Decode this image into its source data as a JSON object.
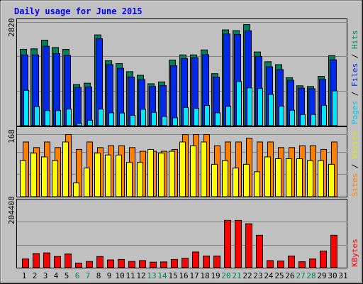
{
  "title": "Daily usage for June 2015",
  "colors": {
    "background": "#c0c0c0",
    "title": "#0000ff",
    "hits_bar": "#00805c",
    "files_bar": "#0028e8",
    "pages_bar": "#00e6ff",
    "sites_bar": "#ff8000",
    "visits_bar": "#ffff00",
    "kbytes_bar": "#ff0000",
    "weekday_label": "#000000",
    "weekend_label": "#00805c"
  },
  "chart_data": [
    {
      "type": "bar",
      "panel": "hits-files-pages",
      "max_label": "2820",
      "right_label": {
        "pages": "Pages",
        "files": "Files",
        "hits": "Hits",
        "sep": " / "
      },
      "ylim": [
        0,
        2820
      ],
      "categories": [
        "1",
        "2",
        "3",
        "4",
        "5",
        "6",
        "7",
        "8",
        "9",
        "10",
        "11",
        "12",
        "13",
        "14",
        "15",
        "16",
        "17",
        "18",
        "19",
        "20",
        "21",
        "22",
        "23",
        "24",
        "25",
        "26",
        "27",
        "28",
        "29",
        "30",
        "31"
      ],
      "series": [
        {
          "name": "Hits",
          "values": [
            2085,
            2100,
            2335,
            2135,
            2085,
            1130,
            1165,
            2480,
            1775,
            1700,
            1480,
            1380,
            1150,
            1200,
            1795,
            1935,
            1935,
            2070,
            1425,
            2615,
            2595,
            2760,
            2015,
            1750,
            1670,
            1315,
            1095,
            1075,
            1350,
            1915,
            0
          ]
        },
        {
          "name": "Files",
          "values": [
            1935,
            1935,
            2170,
            1970,
            1920,
            1050,
            1065,
            2375,
            1670,
            1570,
            1330,
            1265,
            1075,
            1100,
            1640,
            1835,
            1860,
            1940,
            1330,
            2505,
            2490,
            2590,
            1895,
            1610,
            1535,
            1245,
            1030,
            1015,
            1270,
            1800,
            0
          ]
        },
        {
          "name": "Pages",
          "values": [
            970,
            530,
            420,
            420,
            460,
            70,
            155,
            460,
            360,
            355,
            290,
            455,
            370,
            260,
            225,
            505,
            480,
            560,
            360,
            535,
            1210,
            1040,
            1020,
            860,
            540,
            430,
            310,
            315,
            560,
            955,
            0
          ]
        }
      ]
    },
    {
      "type": "bar",
      "panel": "sites-visits",
      "max_label": "168",
      "right_label": {
        "sites": "Sites",
        "visits": "Visits",
        "sep": " / "
      },
      "ylim": [
        0,
        168
      ],
      "categories": [
        "1",
        "2",
        "3",
        "4",
        "5",
        "6",
        "7",
        "8",
        "9",
        "10",
        "11",
        "12",
        "13",
        "14",
        "15",
        "16",
        "17",
        "18",
        "19",
        "20",
        "21",
        "22",
        "23",
        "24",
        "25",
        "26",
        "27",
        "28",
        "29",
        "30",
        "31"
      ],
      "series": [
        {
          "name": "Sites",
          "values": [
            148,
            133,
            148,
            133,
            168,
            128,
            148,
            133,
            138,
            138,
            133,
            123,
            123,
            123,
            128,
            168,
            168,
            168,
            138,
            148,
            148,
            158,
            148,
            148,
            133,
            133,
            138,
            138,
            128,
            148,
            0
          ]
        },
        {
          "name": "Visits",
          "values": [
            98,
            118,
            108,
            98,
            148,
            38,
            78,
            118,
            113,
            113,
            93,
            93,
            128,
            118,
            123,
            148,
            138,
            148,
            88,
            98,
            78,
            88,
            68,
            108,
            103,
            103,
            103,
            98,
            98,
            88,
            0
          ]
        }
      ]
    },
    {
      "type": "bar",
      "panel": "kbytes",
      "max_label": "204408",
      "right_label": {
        "kbytes": "KBytes"
      },
      "ylim": [
        0,
        204408
      ],
      "categories": [
        "1",
        "2",
        "3",
        "4",
        "5",
        "6",
        "7",
        "8",
        "9",
        "10",
        "11",
        "12",
        "13",
        "14",
        "15",
        "16",
        "17",
        "18",
        "19",
        "20",
        "21",
        "22",
        "23",
        "24",
        "25",
        "26",
        "27",
        "28",
        "29",
        "30",
        "31"
      ],
      "weekend_days": [
        "6",
        "7",
        "13",
        "14",
        "20",
        "21",
        "27",
        "28"
      ],
      "series": [
        {
          "name": "KBytes",
          "values": [
            40000,
            64000,
            67000,
            51000,
            62000,
            22000,
            29000,
            51000,
            36000,
            38000,
            29000,
            33000,
            26000,
            27000,
            38000,
            43000,
            71000,
            53000,
            53000,
            211000,
            211000,
            196000,
            145000,
            33000,
            31000,
            53000,
            28000,
            40000,
            75000,
            145000,
            0
          ]
        }
      ]
    }
  ]
}
